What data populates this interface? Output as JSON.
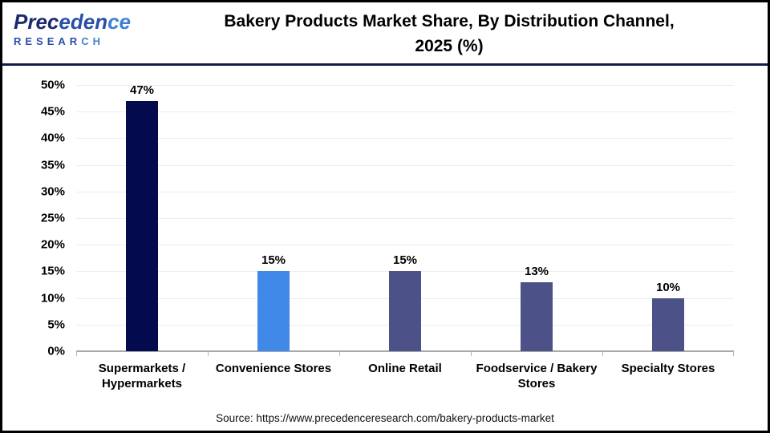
{
  "logo": {
    "word_part1": "Prec",
    "word_part2": "eden",
    "word_part3": "ce",
    "research_part1": "RESEAR",
    "research_part2": "CH"
  },
  "header": {
    "title_line1": "Bakery Products Market Share, By Distribution Channel,",
    "title_line2": "2025 (%)"
  },
  "chart_data": {
    "type": "bar",
    "title": "Bakery Products Market Share, By Distribution Channel, 2025 (%)",
    "categories": [
      "Supermarkets / Hypermarkets",
      "Convenience Stores",
      "Online Retail",
      "Foodservice / Bakery Stores",
      "Specialty Stores"
    ],
    "values": [
      47,
      15,
      15,
      13,
      10
    ],
    "value_labels": [
      "47%",
      "15%",
      "15%",
      "13%",
      "10%"
    ],
    "bar_colors": [
      "#030a4e",
      "#4189e8",
      "#4c5188",
      "#4c5188",
      "#4c5188"
    ],
    "xlabel": "",
    "ylabel": "",
    "ylim": [
      0,
      50
    ],
    "ytick_step": 5,
    "ytick_suffix": "%",
    "grid": true,
    "legend": false
  },
  "footer": {
    "source": "Source: https://www.precedenceresearch.com/bakery-products-market"
  },
  "colors": {
    "bar_dark_navy": "#030a4e",
    "bar_bright_blue": "#4189e8",
    "bar_slate": "#4c5188",
    "divider_navy": "#131c4e",
    "gridline": "#ededed",
    "axis_line": "#a9a9a9",
    "logo_dark": "#1c2a6e",
    "logo_mid": "#2a4fa8",
    "logo_light": "#3f7fd4"
  }
}
